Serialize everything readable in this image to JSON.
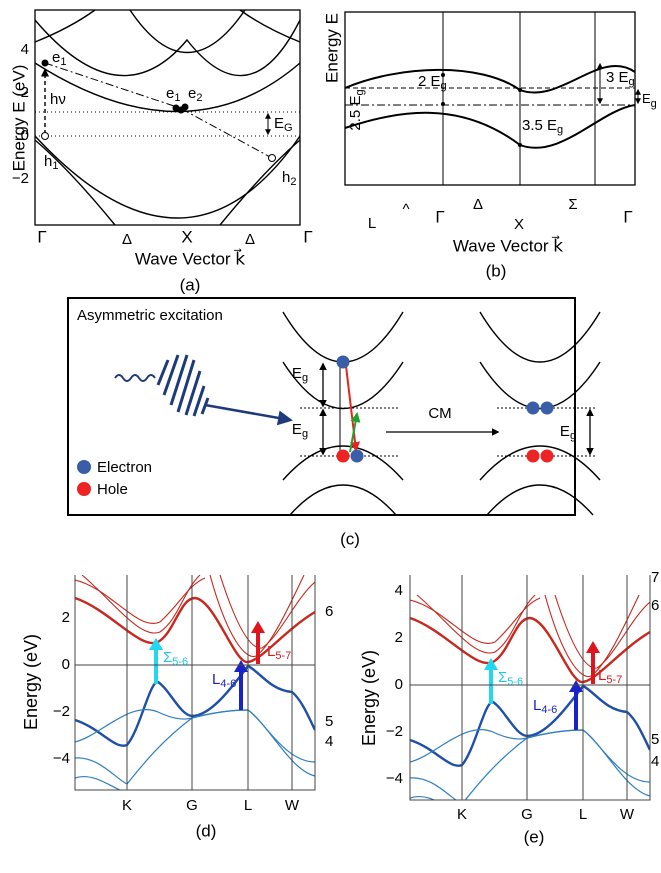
{
  "panel_a": {
    "y_axis_label": "Energy E (eV)",
    "y_ticks": [
      "4",
      "2",
      "0",
      "−2"
    ],
    "x_labels": [
      "Γ",
      "Δ",
      "X",
      "Δ",
      "Γ"
    ],
    "x_axis_label": "Wave Vector k⃗",
    "annotations": {
      "e1_left": {
        "base": "e",
        "sub": "1"
      },
      "photon": "hν",
      "h1": {
        "base": "h",
        "sub": "1"
      },
      "e1": {
        "base": "e",
        "sub": "1"
      },
      "e2": {
        "base": "e",
        "sub": "2"
      },
      "gap": {
        "base": "E",
        "sub": "G"
      },
      "h2": {
        "base": "h",
        "sub": "2"
      }
    },
    "caption": "(a)"
  },
  "panel_b": {
    "y_axis_label": "Energy E",
    "side_label": {
      "base": "2.5 E",
      "sub": "g"
    },
    "annotations": {
      "two": {
        "base": "2 E",
        "sub": "g"
      },
      "three": {
        "base": "3 E",
        "sub": "g"
      },
      "gap": {
        "base": "E",
        "sub": "g"
      },
      "three_half": {
        "base": "3.5 E",
        "sub": "g"
      }
    },
    "x_labels": [
      "L",
      "^",
      "Γ",
      "Δ",
      "X",
      "Σ",
      "Γ"
    ],
    "x_axis_label": "Wave Vector k⃗",
    "caption": "(b)"
  },
  "panel_c": {
    "title": "Asymmetric excitation",
    "gap_labels": [
      {
        "base": "E",
        "sub": "g"
      },
      {
        "base": "E",
        "sub": "g"
      },
      {
        "base": "E",
        "sub": "g"
      }
    ],
    "process": "CM",
    "legend": [
      "Electron",
      "Hole"
    ],
    "caption": "(c)"
  },
  "panel_d": {
    "y_axis_label": "Energy (eV)",
    "y_ticks": [
      "2",
      "0",
      "−2",
      "−4"
    ],
    "x_labels": [
      "K",
      "G",
      "L",
      "W"
    ],
    "transitions": [
      {
        "base": "Σ",
        "sub": "5-6"
      },
      {
        "base": "L",
        "sub": "4-6"
      },
      {
        "base": "L",
        "sub": "5-7"
      }
    ],
    "band_labels": [
      "6",
      "5",
      "4"
    ],
    "caption": "(d)"
  },
  "panel_e": {
    "y_axis_label": "Energy (eV)",
    "y_ticks": [
      "4",
      "2",
      "0",
      "−2",
      "−4"
    ],
    "x_labels": [
      "K",
      "G",
      "L",
      "W"
    ],
    "transitions": [
      {
        "base": "Σ",
        "sub": "5-6"
      },
      {
        "base": "L",
        "sub": "4-6"
      },
      {
        "base": "L",
        "sub": "5-7"
      }
    ],
    "band_labels": [
      "7",
      "6",
      "5",
      "4"
    ],
    "caption": "(e)"
  }
}
